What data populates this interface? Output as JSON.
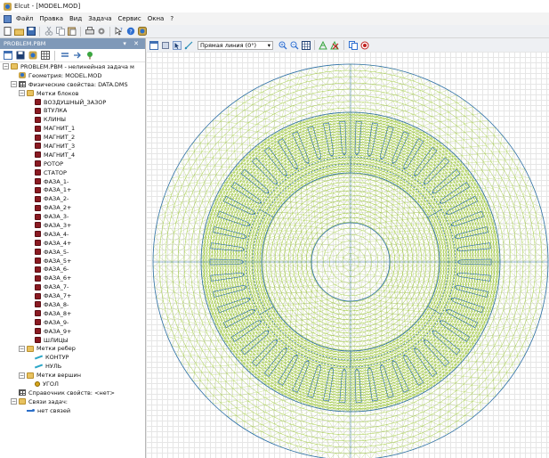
{
  "window": {
    "title": "Elcut - [MODEL.MOD]"
  },
  "menu": [
    "Файл",
    "Правка",
    "Вид",
    "Задача",
    "Сервис",
    "Окна",
    "?"
  ],
  "panel": {
    "title": "PROBLEM.PBM",
    "controls": "▾ ✕",
    "tree": [
      {
        "depth": 0,
        "toggle": "−",
        "icon": "folder",
        "label": "PROBLEM.PBM - нелинейная задача м"
      },
      {
        "depth": 1,
        "toggle": "",
        "icon": "geom",
        "label": "Геометрия: MODEL.MOD"
      },
      {
        "depth": 1,
        "toggle": "−",
        "icon": "grid",
        "label": "Физические свойства: DATA.DMS"
      },
      {
        "depth": 2,
        "toggle": "−",
        "icon": "folder",
        "label": "Метки блоков"
      },
      {
        "depth": 3,
        "toggle": "",
        "icon": "block",
        "label": "ВОЗДУШНЫЙ_ЗАЗОР"
      },
      {
        "depth": 3,
        "toggle": "",
        "icon": "block",
        "label": "ВТУЛКА"
      },
      {
        "depth": 3,
        "toggle": "",
        "icon": "block",
        "label": "КЛИНЫ"
      },
      {
        "depth": 3,
        "toggle": "",
        "icon": "block",
        "label": "МАГНИТ_1"
      },
      {
        "depth": 3,
        "toggle": "",
        "icon": "block",
        "label": "МАГНИТ_2"
      },
      {
        "depth": 3,
        "toggle": "",
        "icon": "block",
        "label": "МАГНИТ_3"
      },
      {
        "depth": 3,
        "toggle": "",
        "icon": "block",
        "label": "МАГНИТ_4"
      },
      {
        "depth": 3,
        "toggle": "",
        "icon": "block",
        "label": "РОТОР"
      },
      {
        "depth": 3,
        "toggle": "",
        "icon": "block",
        "label": "СТАТОР"
      },
      {
        "depth": 3,
        "toggle": "",
        "icon": "block",
        "label": "ФАЗА_1-"
      },
      {
        "depth": 3,
        "toggle": "",
        "icon": "block",
        "label": "ФАЗА_1+"
      },
      {
        "depth": 3,
        "toggle": "",
        "icon": "block",
        "label": "ФАЗА_2-"
      },
      {
        "depth": 3,
        "toggle": "",
        "icon": "block",
        "label": "ФАЗА_2+"
      },
      {
        "depth": 3,
        "toggle": "",
        "icon": "block",
        "label": "ФАЗА_3-"
      },
      {
        "depth": 3,
        "toggle": "",
        "icon": "block",
        "label": "ФАЗА_3+"
      },
      {
        "depth": 3,
        "toggle": "",
        "icon": "block",
        "label": "ФАЗА_4-"
      },
      {
        "depth": 3,
        "toggle": "",
        "icon": "block",
        "label": "ФАЗА_4+"
      },
      {
        "depth": 3,
        "toggle": "",
        "icon": "block",
        "label": "ФАЗА_5-"
      },
      {
        "depth": 3,
        "toggle": "",
        "icon": "block",
        "label": "ФАЗА_5+"
      },
      {
        "depth": 3,
        "toggle": "",
        "icon": "block",
        "label": "ФАЗА_6-"
      },
      {
        "depth": 3,
        "toggle": "",
        "icon": "block",
        "label": "ФАЗА_6+"
      },
      {
        "depth": 3,
        "toggle": "",
        "icon": "block",
        "label": "ФАЗА_7-"
      },
      {
        "depth": 3,
        "toggle": "",
        "icon": "block",
        "label": "ФАЗА_7+"
      },
      {
        "depth": 3,
        "toggle": "",
        "icon": "block",
        "label": "ФАЗА_8-"
      },
      {
        "depth": 3,
        "toggle": "",
        "icon": "block",
        "label": "ФАЗА_8+"
      },
      {
        "depth": 3,
        "toggle": "",
        "icon": "block",
        "label": "ФАЗА_9-"
      },
      {
        "depth": 3,
        "toggle": "",
        "icon": "block",
        "label": "ФАЗА_9+"
      },
      {
        "depth": 3,
        "toggle": "",
        "icon": "block",
        "label": "ШЛИЦЫ"
      },
      {
        "depth": 2,
        "toggle": "−",
        "icon": "folder",
        "label": "Метки ребер"
      },
      {
        "depth": 3,
        "toggle": "",
        "icon": "edge",
        "label": "КОНТУР"
      },
      {
        "depth": 3,
        "toggle": "",
        "icon": "edge",
        "label": "НУЛЬ"
      },
      {
        "depth": 2,
        "toggle": "−",
        "icon": "folder",
        "label": "Метки вершин"
      },
      {
        "depth": 3,
        "toggle": "",
        "icon": "vertex",
        "label": "УГОЛ"
      },
      {
        "depth": 1,
        "toggle": "",
        "icon": "grid",
        "label": "Справочник свойств: <нет>"
      },
      {
        "depth": 1,
        "toggle": "−",
        "icon": "folder",
        "label": "Связи задач:"
      },
      {
        "depth": 2,
        "toggle": "",
        "icon": "link",
        "label": "нет связей"
      }
    ]
  },
  "view_toolbar": {
    "selection_mode": "Прямая линия (0°)"
  },
  "colors": {
    "mesh": "#8fc21a",
    "geometry": "#2b6ea8",
    "panel_header": "#7f99b8"
  }
}
